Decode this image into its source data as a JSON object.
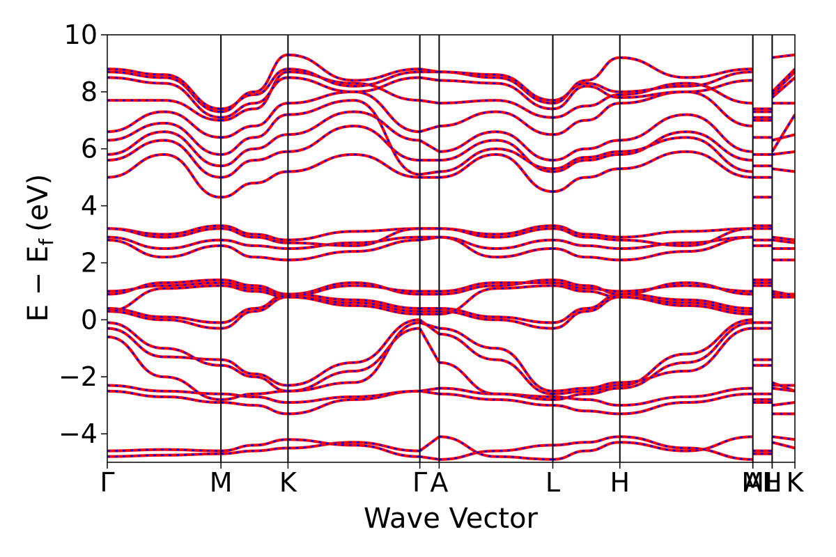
{
  "chart_data": {
    "type": "line",
    "xlabel": "Wave Vector",
    "ylabel": "E − E",
    "ylabel_sub": "f",
    "ylabel_unit": "(eV)",
    "ylim": [
      -5,
      10
    ],
    "yticks": [
      -4,
      -2,
      0,
      2,
      4,
      6,
      8,
      10
    ],
    "ytick_labels": [
      "−4",
      "−2",
      "0",
      "2",
      "4",
      "6",
      "8",
      "10"
    ],
    "xlim": [
      0,
      6.05
    ],
    "kpoints": [
      {
        "label": "Γ",
        "x": 0.0
      },
      {
        "label": "M",
        "x": 1.0
      },
      {
        "label": "K",
        "x": 1.59
      },
      {
        "label": "Γ",
        "x": 2.75
      },
      {
        "label": "A",
        "x": 2.92
      },
      {
        "label": "L",
        "x": 3.92
      },
      {
        "label": "H",
        "x": 4.51
      },
      {
        "label": "A",
        "x": 5.68
      },
      {
        "label": "M",
        "x": 5.68
      },
      {
        "label": "L",
        "x": 5.85
      },
      {
        "label": "H",
        "x": 5.85
      },
      {
        "label": "K",
        "x": 6.05
      }
    ],
    "kpoint_tick_labels": [
      "Γ",
      "M",
      "K",
      "ΓA",
      "L",
      "H",
      "A",
      "M",
      "L",
      "H",
      "K"
    ],
    "grid": false,
    "series_colors": {
      "line": "#ff0000",
      "dash": "#0000ff"
    },
    "segments": [
      {
        "from": "Γ",
        "to": "M",
        "x": [
          0,
          1
        ],
        "bands": [
          [
            -4.8,
            -4.75,
            -4.7
          ],
          [
            -4.6,
            -4.55,
            -4.6
          ],
          [
            -2.5,
            -2.7,
            -2.9
          ],
          [
            -2.3,
            -2.5,
            -2.6
          ],
          [
            -0.6,
            -2.0,
            -2.8
          ],
          [
            -0.3,
            -1.3,
            -1.4
          ],
          [
            -0.1,
            -1.0,
            -1.6
          ],
          [
            0.3,
            0.0,
            -0.3
          ],
          [
            0.4,
            0.1,
            -0.1
          ],
          [
            0.9,
            1.3,
            1.4
          ],
          [
            1.0,
            1.2,
            1.3
          ],
          [
            0.3,
            1.1,
            1.2
          ],
          [
            2.8,
            2.2,
            2.6
          ],
          [
            2.9,
            2.5,
            2.8
          ],
          [
            3.2,
            3.0,
            3.3
          ],
          [
            3.2,
            2.9,
            3.2
          ],
          [
            5.0,
            5.8,
            4.3
          ],
          [
            5.6,
            6.3,
            5.0
          ],
          [
            5.8,
            6.6,
            5.4
          ],
          [
            6.3,
            6.9,
            5.8
          ],
          [
            6.6,
            7.3,
            6.4
          ],
          [
            7.7,
            7.7,
            7.0
          ],
          [
            8.5,
            8.3,
            7.1
          ],
          [
            8.7,
            8.5,
            7.3
          ],
          [
            8.8,
            8.6,
            7.4
          ]
        ]
      },
      {
        "from": "M",
        "to": "K",
        "x": [
          1,
          1.59
        ],
        "bands": [
          [
            -4.7,
            -4.6,
            -4.5
          ],
          [
            -4.6,
            -4.4,
            -4.2
          ],
          [
            -2.9,
            -3.0,
            -3.3
          ],
          [
            -2.6,
            -2.7,
            -2.9
          ],
          [
            -2.8,
            -2.6,
            -2.5
          ],
          [
            -1.4,
            -1.9,
            -2.3
          ],
          [
            -1.6,
            -2.0,
            -2.5
          ],
          [
            -0.3,
            0.3,
            0.8
          ],
          [
            -0.1,
            0.4,
            0.9
          ],
          [
            1.4,
            1.2,
            0.9
          ],
          [
            1.3,
            1.1,
            0.85
          ],
          [
            1.2,
            1.0,
            0.8
          ],
          [
            2.6,
            2.2,
            2.1
          ],
          [
            2.8,
            2.6,
            2.5
          ],
          [
            3.3,
            3.0,
            2.8
          ],
          [
            3.2,
            2.9,
            2.7
          ],
          [
            4.3,
            4.8,
            5.2
          ],
          [
            5.0,
            5.6,
            5.9
          ],
          [
            5.4,
            6.0,
            6.5
          ],
          [
            5.8,
            6.4,
            7.2
          ],
          [
            6.4,
            6.8,
            7.6
          ],
          [
            7.0,
            7.4,
            8.7
          ],
          [
            7.1,
            7.6,
            8.5
          ],
          [
            7.3,
            8.0,
            9.3
          ],
          [
            7.4,
            7.9,
            8.8
          ]
        ]
      },
      {
        "from": "K",
        "to": "Γ",
        "x": [
          1.59,
          2.75
        ],
        "bands": [
          [
            -4.5,
            -4.3,
            -4.6
          ],
          [
            -4.2,
            -4.4,
            -4.8
          ],
          [
            -3.3,
            -2.8,
            -2.5
          ],
          [
            -2.9,
            -2.7,
            -2.5
          ],
          [
            -2.5,
            -1.8,
            -0.3
          ],
          [
            -2.3,
            -1.5,
            0.0
          ],
          [
            -2.5,
            -2.2,
            -0.1
          ],
          [
            0.8,
            0.6,
            0.3
          ],
          [
            0.9,
            0.7,
            0.4
          ],
          [
            0.9,
            1.3,
            0.9
          ],
          [
            0.85,
            1.2,
            1.0
          ],
          [
            0.8,
            0.5,
            0.2
          ],
          [
            2.1,
            2.4,
            2.8
          ],
          [
            2.5,
            2.7,
            2.9
          ],
          [
            2.8,
            3.1,
            3.2
          ],
          [
            2.7,
            2.6,
            3.2
          ],
          [
            5.2,
            5.8,
            5.0
          ],
          [
            5.9,
            6.8,
            5.6
          ],
          [
            6.5,
            7.3,
            6.3
          ],
          [
            7.2,
            7.7,
            5.1
          ],
          [
            7.6,
            8.0,
            6.6
          ],
          [
            8.7,
            8.3,
            7.7
          ],
          [
            8.5,
            8.0,
            8.5
          ],
          [
            9.3,
            8.4,
            8.8
          ],
          [
            8.8,
            8.2,
            8.7
          ]
        ]
      },
      {
        "from": "Γ",
        "to": "A",
        "x": [
          2.75,
          2.92
        ],
        "bands": [
          [
            -4.6,
            -4.1
          ],
          [
            -4.8,
            -4.9
          ],
          [
            -2.5,
            -2.6
          ],
          [
            -2.5,
            -2.4
          ],
          [
            -0.3,
            -1.5
          ],
          [
            0.0,
            -0.5
          ],
          [
            -0.1,
            -0.3
          ],
          [
            0.3,
            0.3
          ],
          [
            0.4,
            0.4
          ],
          [
            0.9,
            0.9
          ],
          [
            1.0,
            1.0
          ],
          [
            0.2,
            0.2
          ],
          [
            2.8,
            2.9
          ],
          [
            2.9,
            2.9
          ],
          [
            3.2,
            3.2
          ],
          [
            3.2,
            3.2
          ],
          [
            5.0,
            5.0
          ],
          [
            5.6,
            5.6
          ],
          [
            6.3,
            5.9
          ],
          [
            5.1,
            5.2
          ],
          [
            6.6,
            6.8
          ],
          [
            7.7,
            7.6
          ],
          [
            8.5,
            8.4
          ],
          [
            8.8,
            8.7
          ],
          [
            8.7,
            8.7
          ]
        ]
      },
      {
        "from": "A",
        "to": "L",
        "x": [
          2.92,
          3.92
        ],
        "bands": [
          [
            -4.1,
            -4.8,
            -4.9
          ],
          [
            -4.9,
            -4.6,
            -4.4
          ],
          [
            -2.6,
            -2.8,
            -3.0
          ],
          [
            -2.4,
            -2.6,
            -2.7
          ],
          [
            -1.5,
            -2.6,
            -2.8
          ],
          [
            -0.5,
            -1.4,
            -2.6
          ],
          [
            -0.3,
            -1.0,
            -2.5
          ],
          [
            0.3,
            0.0,
            -0.3
          ],
          [
            0.4,
            0.1,
            -0.1
          ],
          [
            0.9,
            1.2,
            1.4
          ],
          [
            1.0,
            1.3,
            1.3
          ],
          [
            0.2,
            1.1,
            1.2
          ],
          [
            2.9,
            2.2,
            2.5
          ],
          [
            2.9,
            2.5,
            2.8
          ],
          [
            3.2,
            3.0,
            3.3
          ],
          [
            3.2,
            2.9,
            3.2
          ],
          [
            5.0,
            5.8,
            4.5
          ],
          [
            5.6,
            6.3,
            5.2
          ],
          [
            5.9,
            6.6,
            5.6
          ],
          [
            5.2,
            6.0,
            5.3
          ],
          [
            6.8,
            7.3,
            6.5
          ],
          [
            7.6,
            7.7,
            7.1
          ],
          [
            8.4,
            8.3,
            7.4
          ],
          [
            8.7,
            8.5,
            7.6
          ],
          [
            8.7,
            8.6,
            7.7
          ]
        ]
      },
      {
        "from": "L",
        "to": "H",
        "x": [
          3.92,
          4.51
        ],
        "bands": [
          [
            -4.9,
            -4.6,
            -4.3
          ],
          [
            -4.4,
            -4.3,
            -4.1
          ],
          [
            -3.0,
            -3.2,
            -3.3
          ],
          [
            -2.7,
            -2.8,
            -3.0
          ],
          [
            -2.8,
            -2.6,
            -2.4
          ],
          [
            -2.6,
            -2.5,
            -2.3
          ],
          [
            -2.5,
            -2.4,
            -2.2
          ],
          [
            -0.3,
            0.3,
            0.8
          ],
          [
            -0.1,
            0.4,
            0.9
          ],
          [
            1.4,
            1.2,
            0.9
          ],
          [
            1.3,
            1.1,
            1.0
          ],
          [
            1.2,
            1.0,
            0.8
          ],
          [
            2.5,
            2.2,
            2.1
          ],
          [
            2.8,
            2.6,
            2.5
          ],
          [
            3.3,
            3.0,
            2.9
          ],
          [
            3.2,
            2.9,
            2.8
          ],
          [
            4.5,
            5.0,
            5.3
          ],
          [
            5.2,
            5.6,
            5.8
          ],
          [
            5.6,
            6.0,
            6.3
          ],
          [
            5.3,
            5.7,
            5.9
          ],
          [
            6.5,
            7.0,
            7.6
          ],
          [
            7.1,
            7.5,
            7.9
          ],
          [
            7.4,
            8.2,
            7.8
          ],
          [
            7.6,
            8.4,
            9.2
          ],
          [
            7.7,
            8.3,
            8.0
          ]
        ]
      },
      {
        "from": "H",
        "to": "A",
        "x": [
          4.51,
          5.68
        ],
        "bands": [
          [
            -4.3,
            -4.6,
            -4.1
          ],
          [
            -4.1,
            -4.5,
            -4.9
          ],
          [
            -3.3,
            -2.9,
            -2.6
          ],
          [
            -3.0,
            -2.7,
            -2.4
          ],
          [
            -2.4,
            -1.5,
            -0.1
          ],
          [
            -2.3,
            -1.2,
            0.0
          ],
          [
            -2.2,
            -1.8,
            -0.3
          ],
          [
            0.8,
            0.6,
            0.3
          ],
          [
            0.9,
            0.7,
            0.4
          ],
          [
            0.9,
            1.3,
            0.9
          ],
          [
            1.0,
            1.2,
            1.0
          ],
          [
            0.8,
            0.5,
            0.2
          ],
          [
            2.1,
            2.4,
            2.9
          ],
          [
            2.5,
            2.7,
            2.9
          ],
          [
            2.9,
            3.1,
            3.2
          ],
          [
            2.8,
            2.6,
            3.2
          ],
          [
            5.3,
            5.9,
            5.0
          ],
          [
            5.8,
            6.6,
            5.6
          ],
          [
            6.3,
            7.2,
            5.9
          ],
          [
            5.9,
            6.4,
            5.2
          ],
          [
            7.6,
            8.0,
            6.8
          ],
          [
            7.9,
            8.3,
            7.6
          ],
          [
            7.8,
            8.0,
            8.4
          ],
          [
            9.2,
            8.5,
            8.8
          ],
          [
            8.0,
            8.2,
            8.7
          ]
        ]
      },
      {
        "from": "M",
        "to": "L",
        "x": [
          5.68,
          5.85
        ],
        "bands": [
          [
            -4.7,
            -4.7
          ],
          [
            -4.6,
            -4.6
          ],
          [
            -2.9,
            -2.9
          ],
          [
            -2.6,
            -2.6
          ],
          [
            -2.8,
            -2.8
          ],
          [
            -1.4,
            -1.4
          ],
          [
            -1.6,
            -1.6
          ],
          [
            -0.3,
            -0.3
          ],
          [
            -0.1,
            -0.1
          ],
          [
            1.4,
            1.4
          ],
          [
            1.3,
            1.3
          ],
          [
            1.2,
            1.2
          ],
          [
            2.6,
            2.6
          ],
          [
            2.8,
            2.8
          ],
          [
            3.3,
            3.3
          ],
          [
            3.2,
            3.2
          ],
          [
            4.3,
            4.3
          ],
          [
            5.0,
            5.0
          ],
          [
            5.4,
            5.4
          ],
          [
            5.8,
            5.8
          ],
          [
            6.4,
            6.4
          ],
          [
            7.0,
            7.0
          ],
          [
            7.1,
            7.1
          ],
          [
            7.3,
            7.3
          ],
          [
            7.4,
            7.4
          ]
        ]
      },
      {
        "from": "H",
        "to": "K",
        "x": [
          5.85,
          6.05
        ],
        "bands": [
          [
            -4.3,
            -4.5
          ],
          [
            -4.1,
            -4.2
          ],
          [
            -3.3,
            -3.3
          ],
          [
            -3.0,
            -2.9
          ],
          [
            -2.4,
            -2.5
          ],
          [
            -2.3,
            -2.3
          ],
          [
            -2.2,
            -2.5
          ],
          [
            0.8,
            0.8
          ],
          [
            0.9,
            0.9
          ],
          [
            0.9,
            0.9
          ],
          [
            1.0,
            0.85
          ],
          [
            0.8,
            0.8
          ],
          [
            2.1,
            2.1
          ],
          [
            2.5,
            2.5
          ],
          [
            2.9,
            2.8
          ],
          [
            2.8,
            2.7
          ],
          [
            5.3,
            5.2
          ],
          [
            5.8,
            5.9
          ],
          [
            6.3,
            6.5
          ],
          [
            5.9,
            7.2
          ],
          [
            7.6,
            7.6
          ],
          [
            7.9,
            8.7
          ],
          [
            7.8,
            8.5
          ],
          [
            9.2,
            9.3
          ],
          [
            8.0,
            8.8
          ]
        ]
      }
    ]
  }
}
